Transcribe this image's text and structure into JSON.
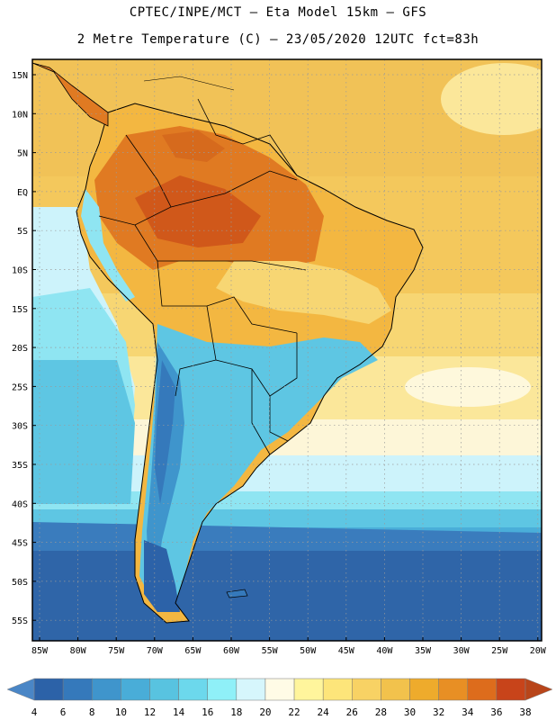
{
  "header": {
    "line1": "CPTEC/INPE/MCT –  Eta Model 15km – GFS",
    "line2": "2 Metre Temperature (C) – 23/05/2020 12UTC fct=83h"
  },
  "map": {
    "lat_labels": [
      "15N",
      "10N",
      "5N",
      "EQ",
      "5S",
      "10S",
      "15S",
      "20S",
      "25S",
      "30S",
      "35S",
      "40S",
      "45S",
      "50S",
      "55S"
    ],
    "lon_labels": [
      "85W",
      "80W",
      "75W",
      "70W",
      "65W",
      "60W",
      "55W",
      "50W",
      "45W",
      "40W",
      "35W",
      "30W",
      "25W",
      "20W"
    ],
    "grid": "dotted"
  },
  "colorbar": {
    "labels": [
      "4",
      "6",
      "8",
      "10",
      "12",
      "14",
      "16",
      "18",
      "20",
      "22",
      "24",
      "26",
      "28",
      "30",
      "32",
      "34",
      "36",
      "38"
    ],
    "low_color": "#4a86c6",
    "high_color": "#b8451a",
    "colors": [
      "#2c62a8",
      "#3579bb",
      "#3f95cc",
      "#49add8",
      "#58c3e0",
      "#6cd8ec",
      "#8ff0f8",
      "#d6f6fc",
      "#fffbe6",
      "#fff59c",
      "#fde57a",
      "#f8d264",
      "#f2c24c",
      "#eeab2c",
      "#e88f24",
      "#dd6c1c",
      "#c8441a"
    ]
  }
}
